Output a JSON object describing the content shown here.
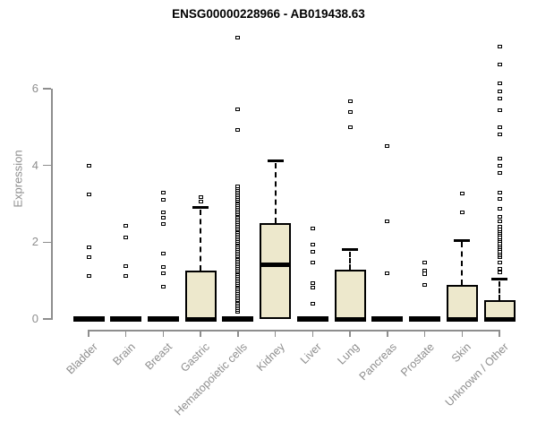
{
  "chart_data": {
    "type": "boxplot",
    "title": "ENSG00000228966 - AB019438.63",
    "ylabel": "Expression",
    "xlabel": "",
    "yticks": [
      0,
      2,
      4,
      6
    ],
    "ylim": [
      0,
      7.5
    ],
    "grid": false,
    "legend": "none",
    "colors": {
      "box_fill": "#EDE8CC",
      "axis": "#8E8E8E",
      "outline": "#000000"
    },
    "categories": [
      {
        "label": "Bladder",
        "q1": 0,
        "median": 0,
        "q3": 0,
        "whisker_high": 0,
        "outliers": [
          3.99,
          3.25,
          1.87,
          1.61,
          1.12
        ]
      },
      {
        "label": "Brain",
        "q1": 0,
        "median": 0,
        "q3": 0,
        "whisker_high": 0,
        "outliers": [
          2.43,
          2.12,
          1.38,
          1.12
        ]
      },
      {
        "label": "Breast",
        "q1": 0,
        "median": 0,
        "q3": 0,
        "whisker_high": 0,
        "outliers": [
          3.29,
          3.11,
          2.78,
          2.64,
          2.48,
          1.7,
          1.35,
          1.19,
          0.84
        ]
      },
      {
        "label": "Gastric",
        "q1": 0,
        "median": 0,
        "q3": 1.26,
        "whisker_high": 2.9,
        "outliers": [
          3.18,
          3.06
        ]
      },
      {
        "label": "Hematopoietic cells",
        "q1": 0,
        "median": 0,
        "q3": 0,
        "whisker_high": 0,
        "outliers": [
          7.33,
          5.46,
          4.93
        ],
        "outlier_band": {
          "min": 0.2,
          "max": 3.45,
          "count": 75
        }
      },
      {
        "label": "Kidney",
        "q1": 0,
        "median": 1.42,
        "q3": 2.5,
        "whisker_high": 4.11,
        "outliers": []
      },
      {
        "label": "Liver",
        "q1": 0,
        "median": 0,
        "q3": 0,
        "whisker_high": 0,
        "outliers": [
          2.36,
          1.94,
          1.75,
          1.47,
          0.93,
          0.82,
          0.4
        ]
      },
      {
        "label": "Lung",
        "q1": 0,
        "median": 0,
        "q3": 1.28,
        "whisker_high": 1.8,
        "outliers": [
          5.67,
          5.39,
          5.0
        ]
      },
      {
        "label": "Pancreas",
        "q1": 0,
        "median": 0,
        "q3": 0,
        "whisker_high": 0,
        "outliers": [
          4.51,
          2.54,
          1.19
        ]
      },
      {
        "label": "Prostate",
        "q1": 0,
        "median": 0,
        "q3": 0,
        "whisker_high": 0,
        "outliers": [
          1.47,
          1.25,
          1.18,
          0.89
        ]
      },
      {
        "label": "Skin",
        "q1": 0,
        "median": 0,
        "q3": 0.89,
        "whisker_high": 2.05,
        "outliers": [
          3.27,
          2.78
        ]
      },
      {
        "label": "Unknown / Other",
        "q1": 0,
        "median": 0,
        "q3": 0.49,
        "whisker_high": 1.03,
        "outliers": [
          7.1,
          6.63,
          6.14,
          5.93,
          5.74,
          5.44,
          5.0,
          4.81,
          4.18,
          3.99,
          3.81,
          3.29,
          3.13,
          2.87,
          2.66,
          2.55,
          1.47,
          1.31,
          1.21
        ],
        "outlier_band": {
          "min": 1.61,
          "max": 2.4,
          "count": 16
        }
      }
    ]
  }
}
